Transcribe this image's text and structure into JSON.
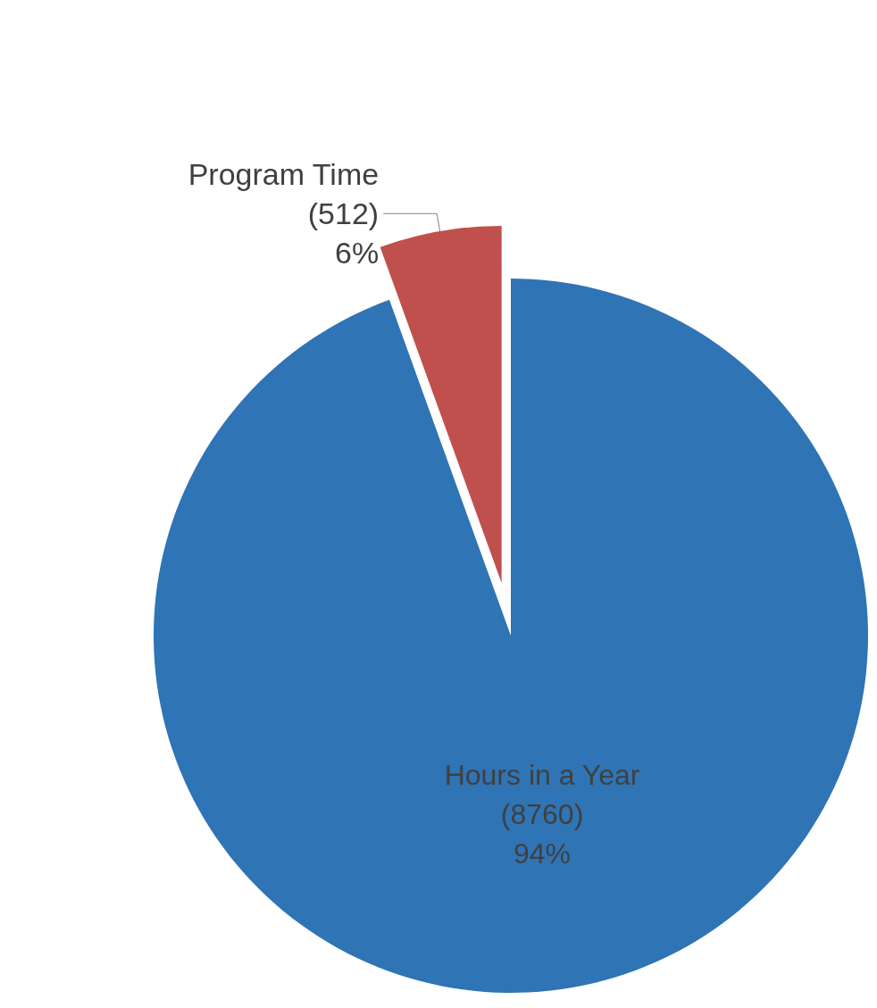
{
  "chart_data": {
    "type": "pie",
    "categories": [
      "Program Time",
      "Hours in a Year"
    ],
    "values": [
      512,
      8760
    ],
    "colors": [
      "#c0504d",
      "#2f74b5"
    ],
    "value_labels": [
      "(512)\n6%",
      "(8760)\n94%"
    ]
  }
}
